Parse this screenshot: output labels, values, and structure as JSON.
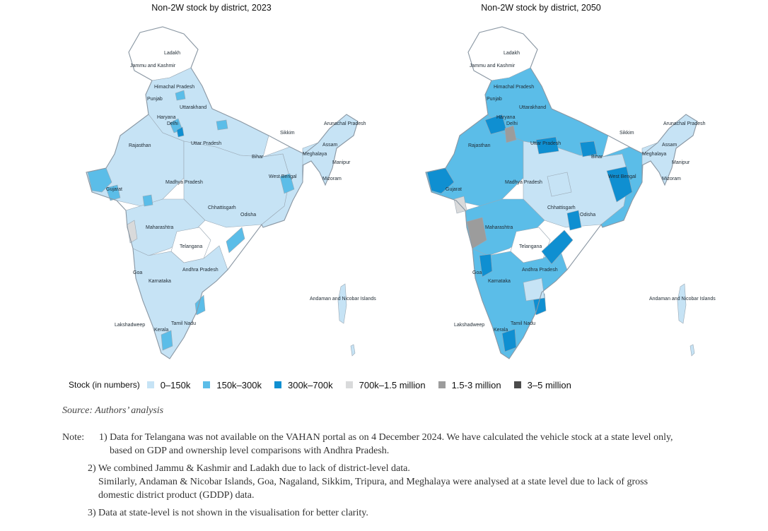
{
  "maps": [
    {
      "title": "Non-2W stock by district, 2023",
      "labels": [
        "Ladakh",
        "Jammu and Kashmir",
        "Himachal Pradesh",
        "Punjab",
        "Uttarakhand",
        "Haryana",
        "Delhi",
        "Rajasthan",
        "Uttar Pradesh",
        "Sikkim",
        "Arunachal Pradesh",
        "Assam",
        "Bihar",
        "Meghalaya",
        "Manipur",
        "West Bengal",
        "Mizoram",
        "Gujarat",
        "Madhya Pradesh",
        "Chhattisgarh",
        "Odisha",
        "Maharashtra",
        "Telangana",
        "Andhra Pradesh",
        "Goa",
        "Karnataka",
        "Andaman and Nicobar Islands",
        "Lakshadweep",
        "Tamil Nadu",
        "Kerala"
      ],
      "category_counts": {
        "0-150k": "majority",
        "150k-300k": "several",
        "300k-700k": "few",
        "700k-1.5 million": "few"
      }
    },
    {
      "title": "Non-2W stock by district, 2050",
      "labels": [
        "Ladakh",
        "Jammu and Kashmir",
        "Himachal Pradesh",
        "Punjab",
        "Uttarakhand",
        "Haryana",
        "Delhi",
        "Rajasthan",
        "Uttar Pradesh",
        "Sikkim",
        "Arunachal Pradesh",
        "Assam",
        "Bihar",
        "Meghalaya",
        "Manipur",
        "West Bengal",
        "Mizoram",
        "Gujarat",
        "Madhya Pradesh",
        "Chhattisgarh",
        "Odisha",
        "Maharashtra",
        "Telangana",
        "Andhra Pradesh",
        "Goa",
        "Karnataka",
        "Andaman and Nicobar Islands",
        "Lakshadweep",
        "Tamil Nadu",
        "Kerala"
      ]
    }
  ],
  "legend": {
    "title": "Stock (in numbers)",
    "items": [
      {
        "label": "0–150k",
        "color": "#c6e3f5"
      },
      {
        "label": "150k–300k",
        "color": "#5bbde8"
      },
      {
        "label": "300k–700k",
        "color": "#0f8fd1"
      },
      {
        "label": "700k–1.5 million",
        "color": "#d9dadb"
      },
      {
        "label": "1.5-3 million",
        "color": "#9c9c9c"
      },
      {
        "label": "3–5 million",
        "color": "#4b4b4b"
      }
    ]
  },
  "source": "Source: Authors’ analysis",
  "notes": {
    "prefix": "Note:",
    "n1_a": "1) Data for Telangana was not available on the VAHAN portal as on 4 December 2024. We have calculated the vehicle stock at a state level only,",
    "n1_b": "based on GDP and ownership level comparisons with Andhra Pradesh.",
    "n2_a": "2) We combined Jammu & Kashmir and Ladakh due to lack of district-level data.",
    "n2_b": "Similarly, Andaman & Nicobar Islands, Goa, Nagaland, Sikkim, Tripura, and Meghalaya were analysed at a state level due to lack of gross",
    "n2_c": "domestic district product (GDDP) data.",
    "n3": "3) Data at state-level is not shown in the visualisation for better clarity."
  }
}
